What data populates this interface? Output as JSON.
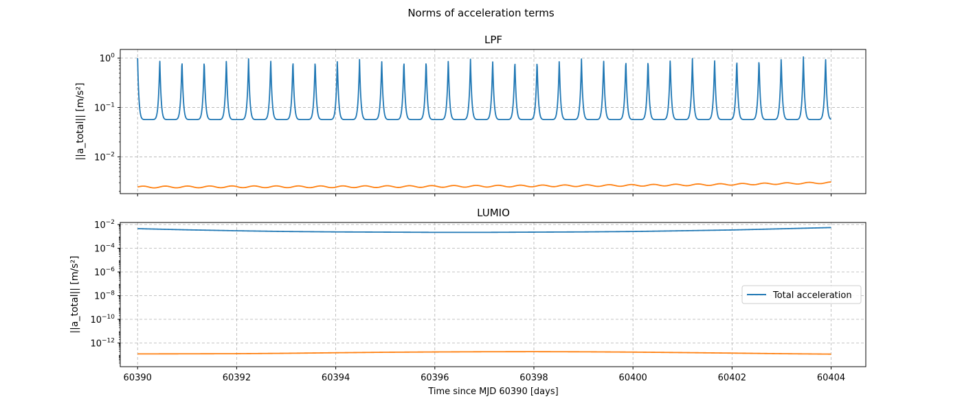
{
  "figure": {
    "suptitle": "Norms of acceleration terms",
    "xlabel": "Time since MJD 60390 [days]"
  },
  "chart_data": [
    {
      "type": "line",
      "title": "LPF",
      "yscale": "log",
      "ylabel": "||a_total||  [m/s²]",
      "xlim": [
        60389.65,
        60404.7
      ],
      "ylim": [
        0.0018,
        1.5
      ],
      "xticks": [
        60390,
        60392,
        60394,
        60396,
        60398,
        60400,
        60402,
        60404
      ],
      "xtick_labels": [
        "",
        "",
        "",
        "",
        "",
        "",
        "",
        ""
      ],
      "yticks": [
        1,
        0.1,
        0.01
      ],
      "ytick_labels": [
        {
          "base": "10",
          "exp": "0"
        },
        {
          "base": "10",
          "exp": "−1"
        },
        {
          "base": "10",
          "exp": "−2"
        }
      ],
      "grid": true,
      "series": [
        {
          "color": "#1f77b4",
          "shape": "periodic spikes",
          "x_range": [
            60390,
            60404
          ],
          "period_days": 0.448,
          "peak": 1.0,
          "trough": 0.057,
          "peak_values": [
            1.0,
            0.97,
            0.96,
            0.95,
            0.96,
            0.97,
            0.97,
            0.96,
            0.95,
            0.95,
            0.94,
            0.95,
            0.95,
            0.96,
            0.96,
            0.95,
            0.94,
            0.94,
            0.94,
            0.95,
            0.96,
            0.97,
            0.98,
            0.98,
            0.98,
            0.98,
            0.99,
            1.0,
            1.02,
            1.05,
            1.06,
            1.05,
            1.04
          ]
        },
        {
          "color": "#ff7f0e",
          "x": [
            60390,
            60392,
            60394,
            60396,
            60398,
            60400,
            60401,
            60402,
            60403,
            60404
          ],
          "y": [
            0.00245,
            0.00248,
            0.00248,
            0.00252,
            0.00258,
            0.00265,
            0.0027,
            0.00278,
            0.00288,
            0.003
          ],
          "ripple_amplitude": 0.0001,
          "ripple_period_days": 0.448
        }
      ]
    },
    {
      "type": "line",
      "title": "LUMIO",
      "yscale": "log",
      "ylabel": "||a_total||  [m/s²]",
      "xlim": [
        60389.65,
        60404.7
      ],
      "ylim": [
        1e-14,
        0.015
      ],
      "xticks": [
        60390,
        60392,
        60394,
        60396,
        60398,
        60400,
        60402,
        60404
      ],
      "xtick_labels": [
        "60390",
        "60392",
        "60394",
        "60396",
        "60398",
        "60400",
        "60402",
        "60404"
      ],
      "yticks": [
        0.01,
        0.0001,
        1e-06,
        1e-08,
        1e-10,
        1e-12
      ],
      "ytick_labels": [
        {
          "base": "10",
          "exp": "−2"
        },
        {
          "base": "10",
          "exp": "−4"
        },
        {
          "base": "10",
          "exp": "−6"
        },
        {
          "base": "10",
          "exp": "−8"
        },
        {
          "base": "10",
          "exp": "−10"
        },
        {
          "base": "10",
          "exp": "−12"
        }
      ],
      "grid": true,
      "legend": {
        "placement": "center-right",
        "entries": [
          {
            "label": "Total acceleration",
            "color": "#1f77b4"
          }
        ]
      },
      "series": [
        {
          "color": "#1f77b4",
          "x": [
            60390,
            60391,
            60392,
            60393,
            60394,
            60395,
            60396,
            60397,
            60398,
            60399,
            60400,
            60401,
            60402,
            60403,
            60404
          ],
          "y": [
            0.0045,
            0.0036,
            0.003,
            0.0026,
            0.0024,
            0.0023,
            0.0022,
            0.0022,
            0.0023,
            0.0024,
            0.0026,
            0.003,
            0.0035,
            0.0044,
            0.0056
          ]
        },
        {
          "color": "#ff7f0e",
          "x": [
            60390,
            60391,
            60392,
            60393,
            60394,
            60395,
            60396,
            60397,
            60398,
            60399,
            60400,
            60401,
            60402,
            60403,
            60404
          ],
          "y": [
            1.2e-13,
            1.22e-13,
            1.25e-13,
            1.35e-13,
            1.5e-13,
            1.65e-13,
            1.75e-13,
            1.82e-13,
            1.85e-13,
            1.8e-13,
            1.7e-13,
            1.55e-13,
            1.4e-13,
            1.25e-13,
            1.15e-13
          ]
        }
      ]
    }
  ]
}
